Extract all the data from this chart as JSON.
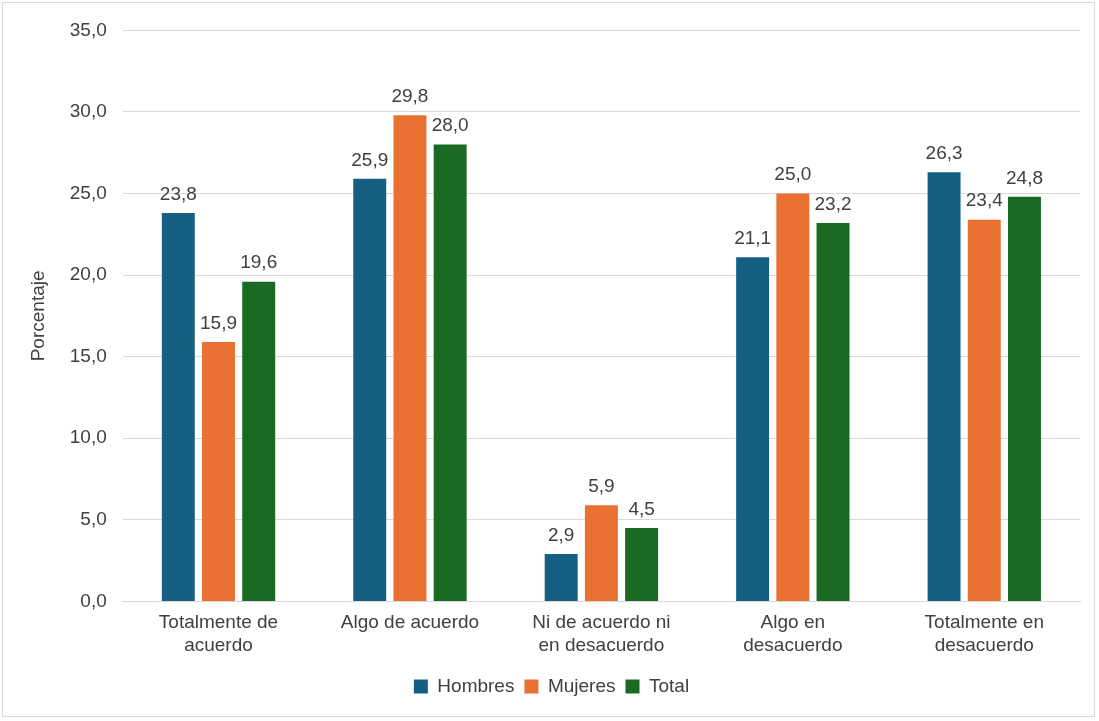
{
  "chart_data": {
    "type": "bar",
    "ylabel": "Porcentaje",
    "categories": [
      "Totalmente de acuerdo",
      "Algo de acuerdo",
      "Ni de acuerdo ni en desacuerdo",
      "Algo en desacuerdo",
      "Totalmente en desacuerdo"
    ],
    "series": [
      {
        "name": "Hombres",
        "color": "#156082",
        "values": [
          23.8,
          25.9,
          2.9,
          21.1,
          26.3
        ],
        "value_labels": [
          "23,8",
          "25,9",
          "2,9",
          "21,1",
          "26,3"
        ]
      },
      {
        "name": "Mujeres",
        "color": "#e97132",
        "values": [
          15.9,
          29.8,
          5.9,
          25.0,
          23.4
        ],
        "value_labels": [
          "15,9",
          "29,8",
          "5,9",
          "25,0",
          "23,4"
        ]
      },
      {
        "name": "Total",
        "color": "#196b24",
        "values": [
          19.6,
          28.0,
          4.5,
          23.2,
          24.8
        ],
        "value_labels": [
          "19,6",
          "28,0",
          "4,5",
          "23,2",
          "24,8"
        ]
      }
    ],
    "ylim": [
      0,
      35
    ],
    "yticks": [
      {
        "value": 0,
        "label": "0,0"
      },
      {
        "value": 5,
        "label": "5,0"
      },
      {
        "value": 10,
        "label": "10,0"
      },
      {
        "value": 15,
        "label": "15,0"
      },
      {
        "value": 20,
        "label": "20,0"
      },
      {
        "value": 25,
        "label": "25,0"
      },
      {
        "value": 30,
        "label": "30,0"
      },
      {
        "value": 35,
        "label": "35,0"
      }
    ],
    "grid": "y",
    "legend": "bottom"
  }
}
